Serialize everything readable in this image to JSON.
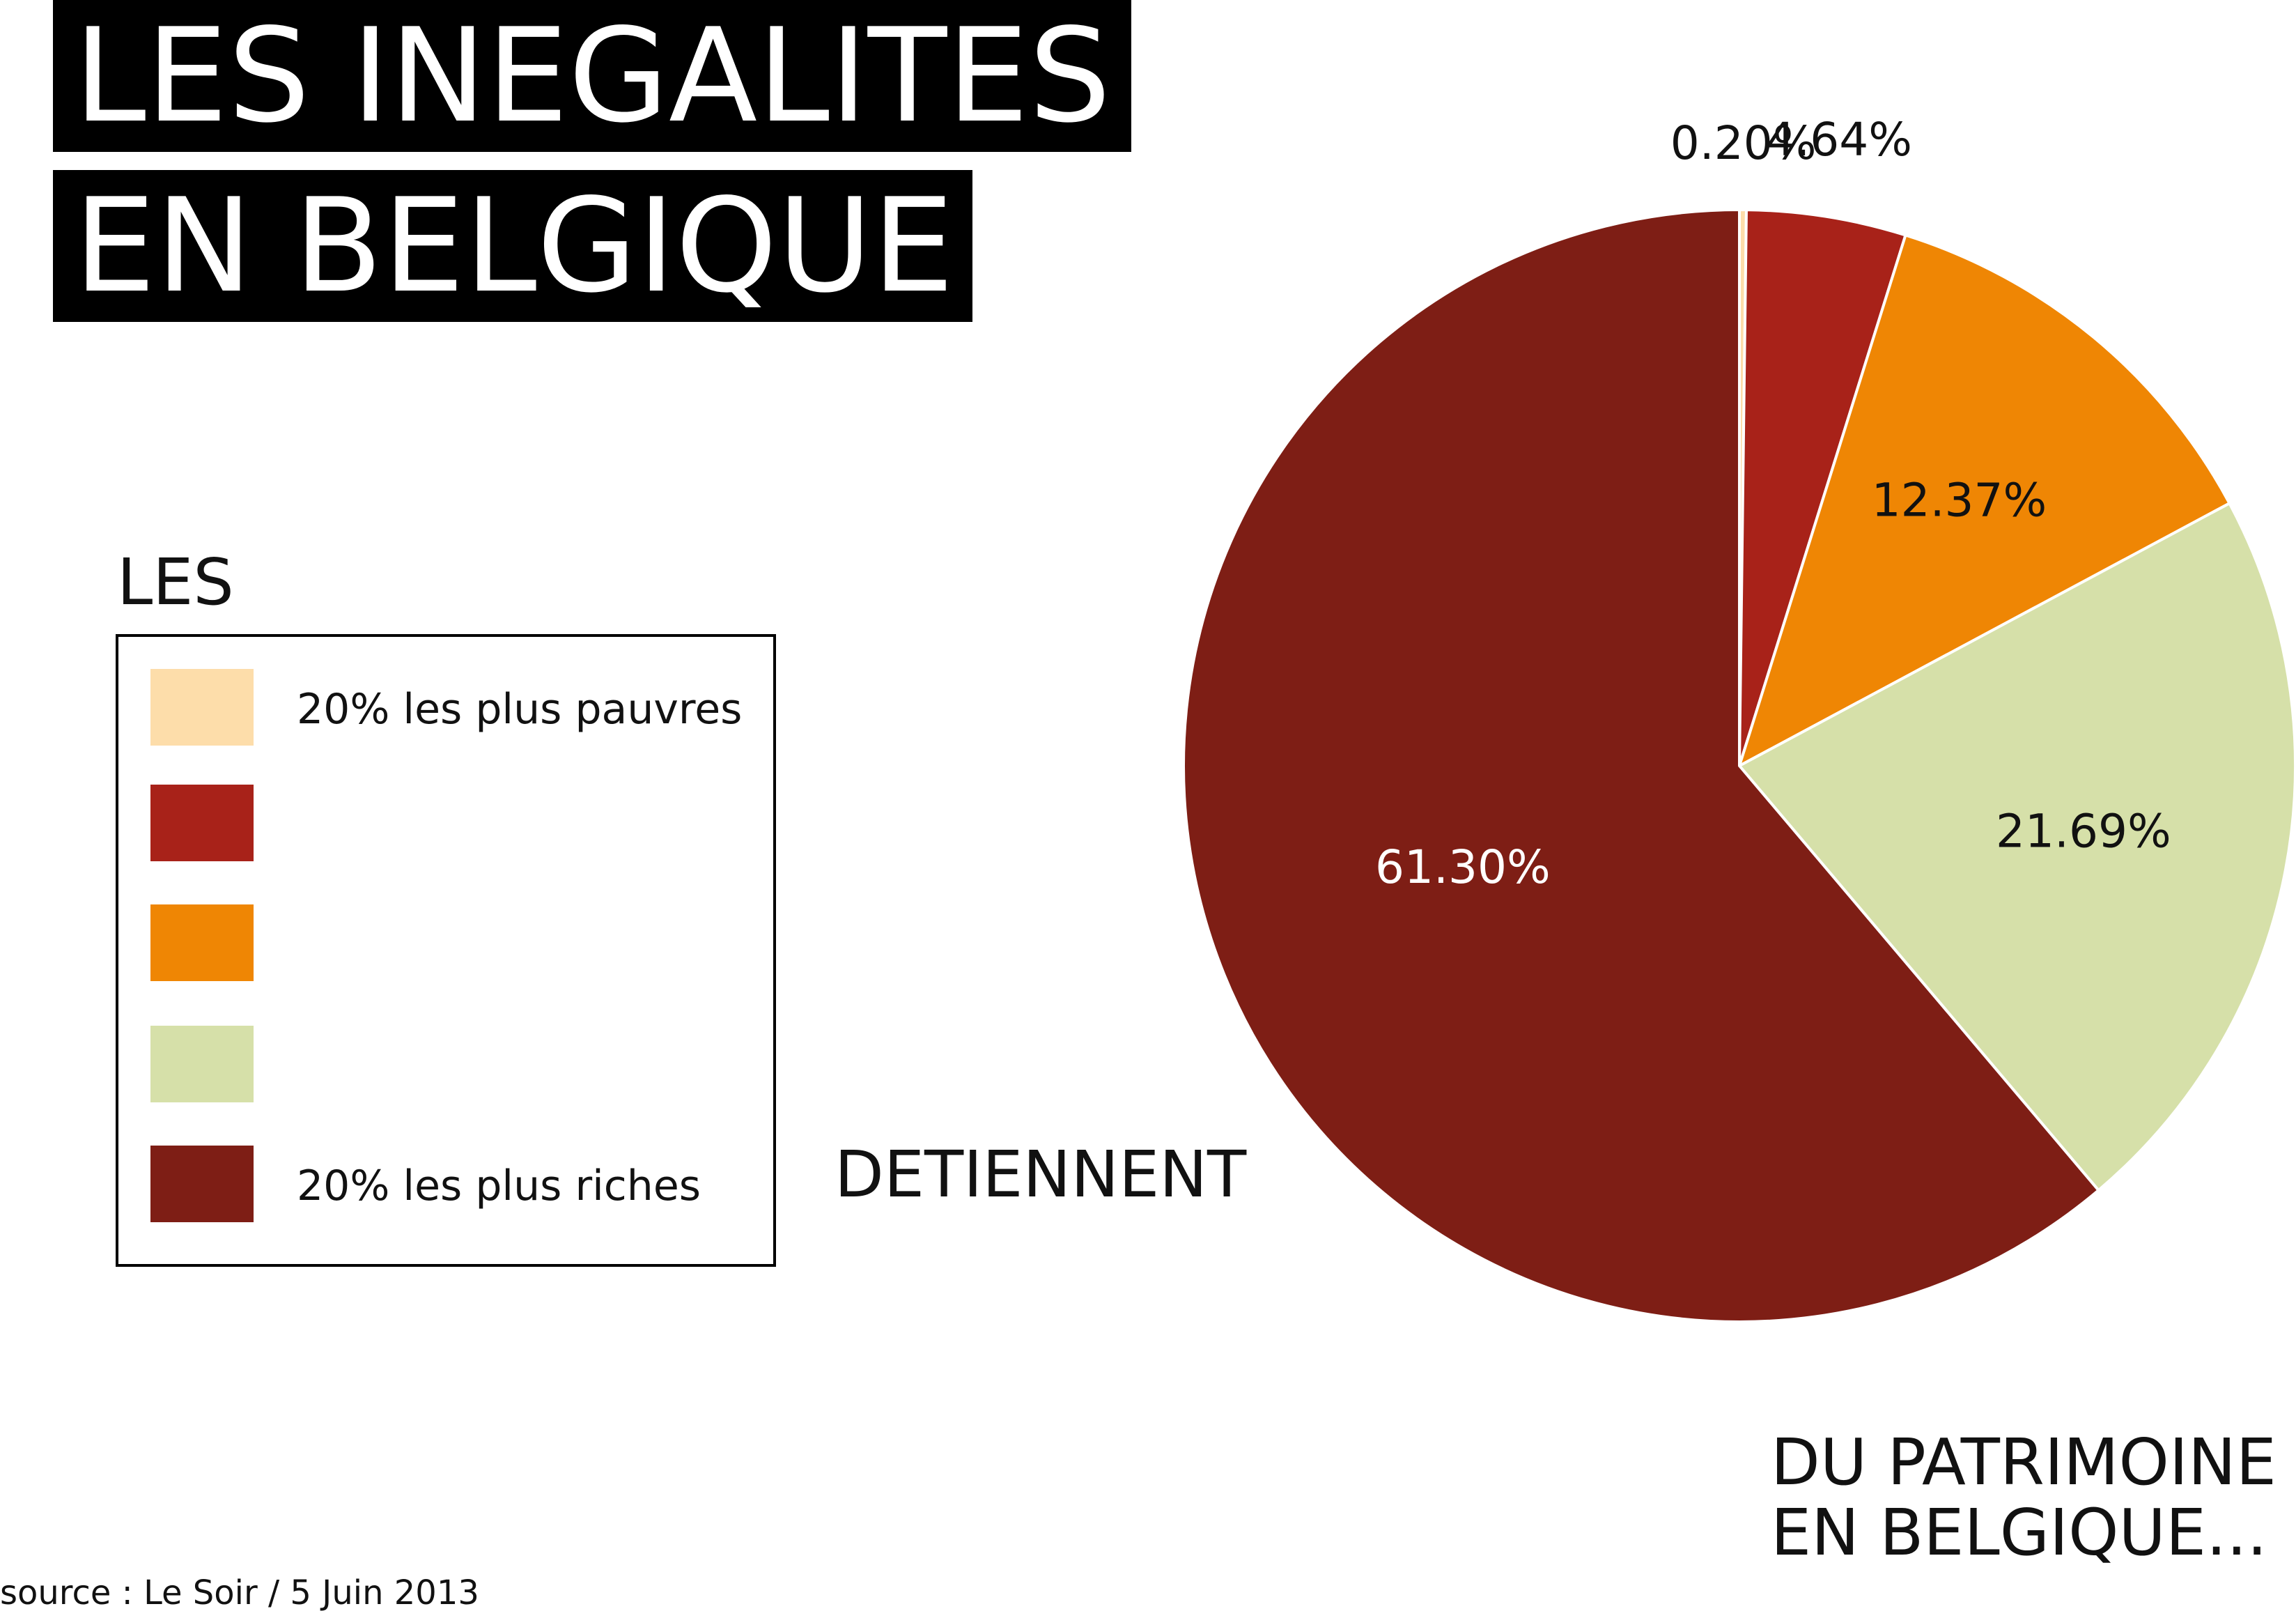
{
  "title": {
    "line1": "LES INEGALITES",
    "line2": "EN BELGIQUE"
  },
  "legend": {
    "heading": "LES",
    "items": [
      {
        "label": "20% les plus pauvres",
        "color": "#FDDDAA"
      },
      {
        "label": "",
        "color": "#A82219"
      },
      {
        "label": "",
        "color": "#EF8604"
      },
      {
        "label": "",
        "color": "#D6E0A9"
      },
      {
        "label": "20% les plus riches",
        "color": "#7E1E15"
      }
    ]
  },
  "verb": "DETIENNENT",
  "subject": {
    "line1": "DU PATRIMOINE",
    "line2": "EN BELGIQUE..."
  },
  "source": "source : Le Soir / 5 Juin 2013",
  "chart_data": {
    "type": "pie",
    "title": "LES INEGALITES EN BELGIQUE",
    "start": "top, clockwise",
    "slices": [
      {
        "label": "20% les plus pauvres",
        "value": 0.2,
        "display": "0.20%",
        "color": "#FDDDAA",
        "text_color": "#111111"
      },
      {
        "label": "",
        "value": 4.64,
        "display": "4.64%",
        "color": "#A82219",
        "text_color": "#111111"
      },
      {
        "label": "",
        "value": 12.37,
        "display": "12.37%",
        "color": "#EF8604",
        "text_color": "#111111"
      },
      {
        "label": "",
        "value": 21.69,
        "display": "21.69%",
        "color": "#D6E0A9",
        "text_color": "#111111"
      },
      {
        "label": "20% les plus riches",
        "value": 61.3,
        "display": "61.30%",
        "color": "#7E1E15",
        "text_color": "#ffffff"
      }
    ]
  }
}
